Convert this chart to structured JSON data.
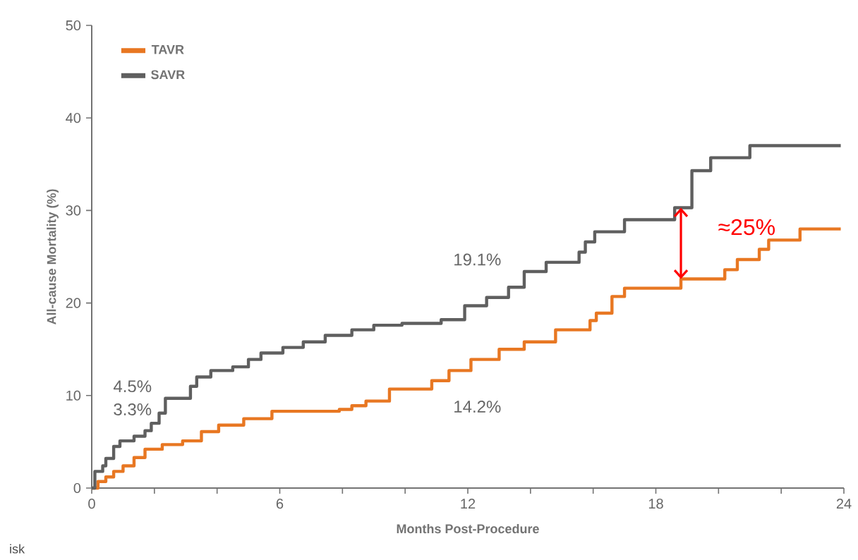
{
  "chart_data": {
    "type": "step",
    "xlabel": "Months Post-Procedure",
    "ylabel": "All-cause Mortality (%)",
    "xlim": [
      0,
      24
    ],
    "ylim": [
      0,
      50
    ],
    "xticks": [
      0,
      {
        "value": 2,
        "label": null
      },
      {
        "value": 4,
        "label": null
      },
      6,
      {
        "value": 8,
        "label": null
      },
      {
        "value": 10,
        "label": null
      },
      12,
      {
        "value": 14,
        "label": null
      },
      {
        "value": 16,
        "label": null
      },
      18,
      {
        "value": 20,
        "label": null
      },
      {
        "value": 22,
        "label": null
      },
      24
    ],
    "yticks": [
      0,
      10,
      20,
      30,
      40,
      50
    ],
    "legend": "top left",
    "grid": false,
    "marker": "none",
    "line_style": "solid",
    "series": [
      {
        "name": "TAVR",
        "color": "#e87722",
        "x": [
          0,
          0.2,
          0.45,
          0.7,
          1.0,
          1.35,
          1.7,
          2.25,
          2.9,
          3.5,
          4.05,
          4.85,
          5.75,
          7.9,
          8.3,
          8.75,
          9.5,
          10.85,
          11.4,
          12.1,
          13.0,
          13.8,
          14.8,
          15.9,
          16.1,
          16.6,
          17.0,
          18.8,
          20.2,
          20.6,
          21.3,
          21.6,
          22.6,
          23.9
        ],
        "values": [
          0,
          0.7,
          1.2,
          1.8,
          2.4,
          3.3,
          4.2,
          4.7,
          5.1,
          6.1,
          6.8,
          7.5,
          8.3,
          8.5,
          8.9,
          9.4,
          10.7,
          11.6,
          12.7,
          13.9,
          15.0,
          15.8,
          17.1,
          18.1,
          18.9,
          20.7,
          21.6,
          22.6,
          23.6,
          24.7,
          25.8,
          26.8,
          28.0,
          28.0
        ]
      },
      {
        "name": "SAVR",
        "color": "#5f5f5f",
        "x": [
          0,
          0.1,
          0.35,
          0.45,
          0.7,
          0.9,
          1.35,
          1.7,
          1.9,
          2.15,
          2.35,
          2.9,
          3.15,
          3.35,
          3.8,
          4.5,
          5.0,
          5.4,
          6.1,
          6.75,
          7.45,
          8.3,
          9.0,
          9.9,
          11.15,
          11.9,
          12.6,
          13.3,
          13.8,
          14.5,
          15.55,
          15.75,
          16.05,
          17.0,
          18.6,
          19.15,
          19.75,
          21.0,
          23.9
        ],
        "values": [
          0,
          1.8,
          2.4,
          3.2,
          4.5,
          5.1,
          5.6,
          6.2,
          7.0,
          8.1,
          9.7,
          9.7,
          11.0,
          12.0,
          12.7,
          13.1,
          13.9,
          14.6,
          15.2,
          15.8,
          16.5,
          17.1,
          17.6,
          17.8,
          18.2,
          19.7,
          20.6,
          21.7,
          23.4,
          24.4,
          25.5,
          26.6,
          27.7,
          29.0,
          30.3,
          34.3,
          35.7,
          37.0,
          37.0
        ]
      }
    ],
    "annotations": [
      "4.5%",
      "3.3%",
      {
        "text": "19.1%",
        "x": 12,
        "y": 19.1
      },
      {
        "text": "14.2%",
        "x": 12,
        "y": 14.2
      },
      "≈25%",
      "isk"
    ]
  }
}
